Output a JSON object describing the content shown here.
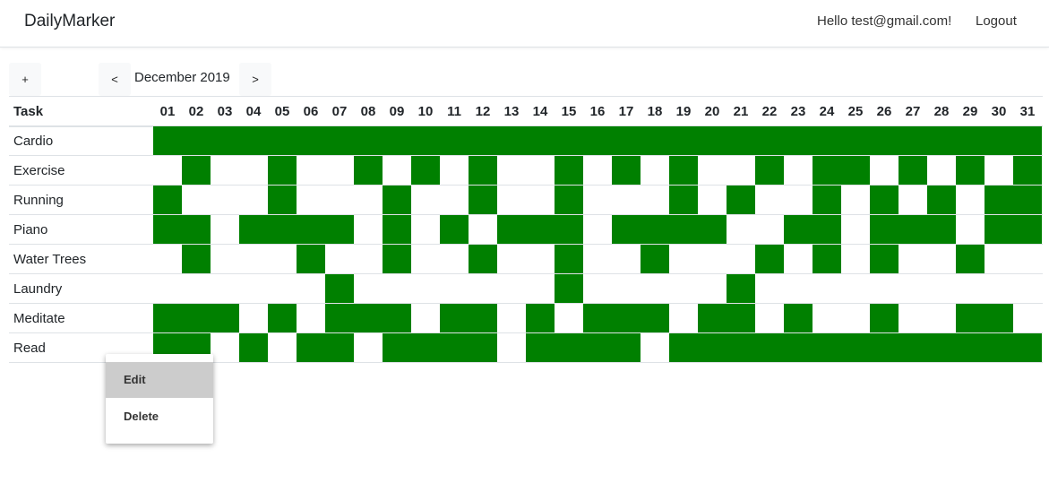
{
  "navbar": {
    "brand": "DailyMarker",
    "greeting": "Hello test@gmail.com!",
    "logout": "Logout"
  },
  "toolbar": {
    "add_label": "+",
    "prev_label": "<",
    "next_label": ">",
    "month": "December 2019"
  },
  "table": {
    "task_header": "Task",
    "days": [
      "01",
      "02",
      "03",
      "04",
      "05",
      "06",
      "07",
      "08",
      "09",
      "10",
      "11",
      "12",
      "13",
      "14",
      "15",
      "16",
      "17",
      "18",
      "19",
      "20",
      "21",
      "22",
      "23",
      "24",
      "25",
      "26",
      "27",
      "28",
      "29",
      "30",
      "31"
    ],
    "tasks": [
      {
        "name": "Cardio",
        "marked": [
          1,
          2,
          3,
          4,
          5,
          6,
          7,
          8,
          9,
          10,
          11,
          12,
          13,
          14,
          15,
          16,
          17,
          18,
          19,
          20,
          21,
          22,
          23,
          24,
          25,
          26,
          27,
          28,
          29,
          30,
          31
        ]
      },
      {
        "name": "Exercise",
        "marked": [
          2,
          5,
          8,
          10,
          12,
          15,
          17,
          19,
          22,
          24,
          25,
          27,
          29,
          31
        ]
      },
      {
        "name": "Running",
        "marked": [
          1,
          5,
          9,
          12,
          15,
          19,
          21,
          24,
          26,
          28,
          30,
          31
        ]
      },
      {
        "name": "Piano",
        "marked": [
          1,
          2,
          4,
          5,
          6,
          7,
          9,
          11,
          13,
          14,
          15,
          17,
          18,
          19,
          20,
          23,
          24,
          26,
          27,
          28,
          30,
          31
        ]
      },
      {
        "name": "Water Trees",
        "marked": [
          2,
          6,
          9,
          12,
          15,
          18,
          22,
          24,
          26,
          29
        ]
      },
      {
        "name": "Laundry",
        "marked": [
          7,
          15,
          21
        ]
      },
      {
        "name": "Meditate",
        "marked": [
          1,
          2,
          3,
          5,
          7,
          8,
          9,
          11,
          12,
          14,
          16,
          17,
          18,
          20,
          21,
          23,
          26,
          29,
          30
        ]
      },
      {
        "name": "Read",
        "marked": [
          1,
          2,
          4,
          6,
          7,
          9,
          10,
          11,
          12,
          14,
          15,
          16,
          17,
          19,
          20,
          21,
          22,
          23,
          24,
          25,
          26,
          27,
          28,
          29,
          30,
          31
        ]
      }
    ]
  },
  "context_menu": {
    "edit": "Edit",
    "delete": "Delete"
  },
  "colors": {
    "marked": "#008000",
    "menu_highlight": "#cccccc"
  }
}
